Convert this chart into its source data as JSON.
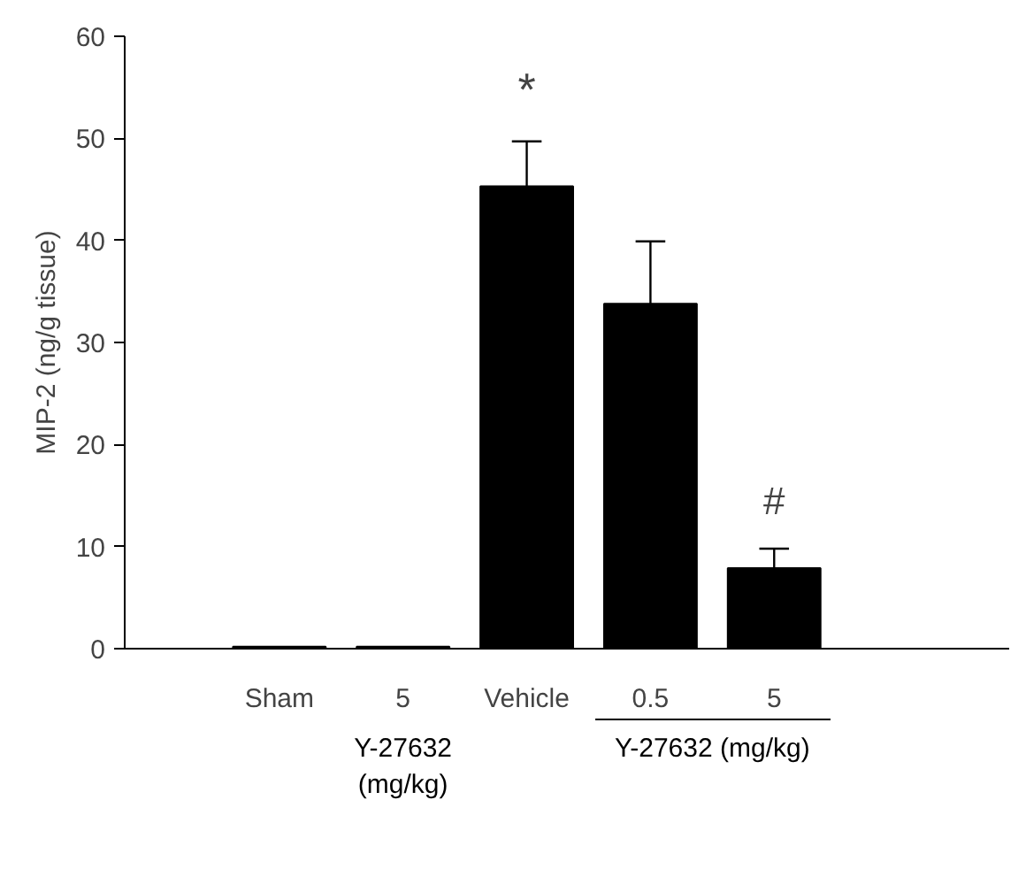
{
  "chart_data": {
    "type": "bar",
    "ylabel": "MIP-2 (ng/g tissue)",
    "categories": [
      "Sham",
      "5",
      "Vehicle",
      "0.5",
      "5"
    ],
    "values": [
      0.2,
      0.2,
      45.3,
      33.8,
      7.9
    ],
    "errors": [
      null,
      null,
      [
        45.3,
        49.7
      ],
      [
        33.8,
        39.9
      ],
      [
        7.9,
        9.8
      ]
    ],
    "value_labels": [
      null,
      null,
      "*",
      null,
      "#"
    ],
    "color": "#000000",
    "ylim": [
      0,
      60
    ],
    "yticks": [
      0,
      10,
      20,
      30,
      40,
      50,
      60
    ],
    "grid": false,
    "annotations": [
      "Y-27632\n(mg/kg)",
      "Y-27632 (mg/kg)"
    ]
  }
}
